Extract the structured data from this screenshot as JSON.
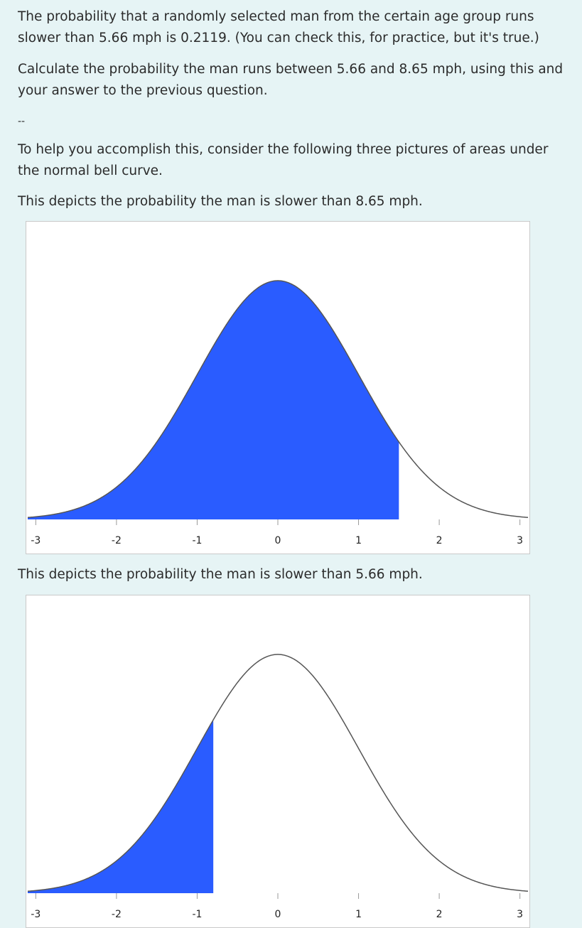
{
  "paragraphs": {
    "p1": "The probability that a randomly selected man from the certain age group runs slower than  5.66 mph is 0.2119. (You can check this, for practice, but it's true.)",
    "p2": "Calculate the probability the man runs between 5.66 and 8.65 mph, using this and your answer to the previous question.",
    "separator": "--",
    "p3": "To help you accomplish this, consider the following three pictures of areas under the normal bell curve.",
    "caption1": "This depicts the probability the man is slower than 8.65 mph.",
    "caption2": "This depicts the probability the man is slower than 5.66 mph."
  },
  "colors": {
    "fill": "#2a5cff",
    "curve": "#555555",
    "background": "#e6f4f5"
  },
  "chart_data": [
    {
      "type": "area",
      "curve": "standard-normal",
      "xlim": [
        -3.1,
        3.1
      ],
      "ticks": [
        "-3",
        "-2",
        "-1",
        "0",
        "1",
        "2",
        "3"
      ],
      "shade_from": -3.1,
      "shade_to": 1.5
    },
    {
      "type": "area",
      "curve": "standard-normal",
      "xlim": [
        -3.1,
        3.1
      ],
      "ticks": [
        "-3",
        "-2",
        "-1",
        "0",
        "1",
        "2",
        "3"
      ],
      "shade_from": -3.1,
      "shade_to": -0.8
    }
  ]
}
